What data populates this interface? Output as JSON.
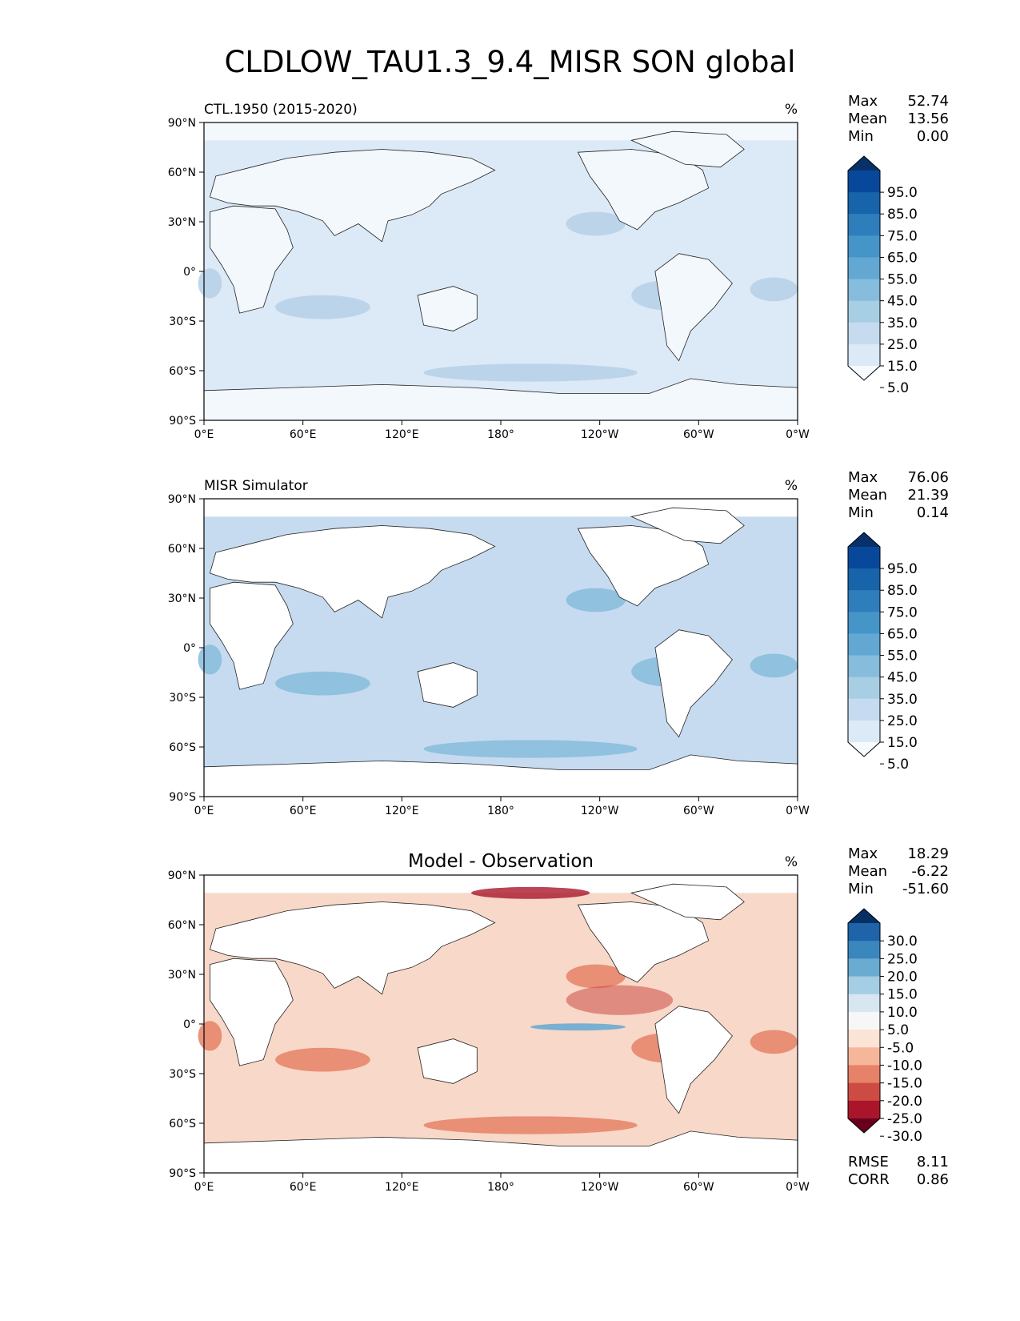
{
  "title": "CLDLOW_TAU1.3_9.4_MISR SON global",
  "lon_ticks": [
    "0°E",
    "60°E",
    "120°E",
    "180°",
    "120°W",
    "60°W",
    "0°W"
  ],
  "lat_ticks": [
    "90°N",
    "60°N",
    "30°N",
    "0°",
    "30°S",
    "60°S",
    "90°S"
  ],
  "panels": [
    {
      "name": "test",
      "left_label": "CTL.1950 (2015-2020)",
      "center_label": "",
      "units": "%",
      "stats": [
        {
          "label": "Max",
          "value": "52.74"
        },
        {
          "label": "Mean",
          "value": "13.56"
        },
        {
          "label": "Min",
          "value": "0.00"
        }
      ],
      "colorbar_ticks": [
        "95.0",
        "85.0",
        "75.0",
        "65.0",
        "55.0",
        "45.0",
        "35.0",
        "25.0",
        "15.0",
        "5.0"
      ],
      "colorbar_colors": [
        "#08306b",
        "#08489a",
        "#1764ab",
        "#2e7ebc",
        "#4695c8",
        "#63a8d3",
        "#86bcdc",
        "#a8cee4",
        "#c6dbef",
        "#dce9f6",
        "#f7fbff"
      ],
      "ocean_color": "#dce9f6",
      "land_color": "#f3f8fd",
      "accent_color": "#b5d0e8",
      "show_band": false
    },
    {
      "name": "reference",
      "left_label": "MISR Simulator",
      "center_label": "",
      "units": "%",
      "stats": [
        {
          "label": "Max",
          "value": "76.06"
        },
        {
          "label": "Mean",
          "value": "21.39"
        },
        {
          "label": "Min",
          "value": "0.14"
        }
      ],
      "colorbar_ticks": [
        "95.0",
        "85.0",
        "75.0",
        "65.0",
        "55.0",
        "45.0",
        "35.0",
        "25.0",
        "15.0",
        "5.0"
      ],
      "colorbar_colors": [
        "#08306b",
        "#08489a",
        "#1764ab",
        "#2e7ebc",
        "#4695c8",
        "#63a8d3",
        "#86bcdc",
        "#a8cee4",
        "#c6dbef",
        "#dce9f6",
        "#f7fbff"
      ],
      "ocean_color": "#c6dbef",
      "land_color": "#ffffff",
      "accent_color": "#86bcdc",
      "show_band": false
    },
    {
      "name": "difference",
      "left_label": "",
      "center_label": "Model - Observation",
      "units": "%",
      "stats": [
        {
          "label": "Max",
          "value": "18.29"
        },
        {
          "label": "Mean",
          "value": "-6.22"
        },
        {
          "label": "Min",
          "value": "-51.60"
        }
      ],
      "colorbar_ticks": [
        "30.0",
        "25.0",
        "20.0",
        "15.0",
        "10.0",
        "5.0",
        "-5.0",
        "-10.0",
        "-15.0",
        "-20.0",
        "-25.0",
        "-30.0"
      ],
      "colorbar_colors": [
        "#053061",
        "#1f63a8",
        "#3a87bd",
        "#6aabd1",
        "#a5cde3",
        "#d6e7f1",
        "#f7f7f7",
        "#fbe3d6",
        "#f6b69a",
        "#e58267",
        "#cc4c43",
        "#a9162b",
        "#67001f"
      ],
      "ocean_color": "#f8d8c8",
      "land_color": "#ffffff",
      "accent_color": "#e58267",
      "show_band": true,
      "metrics": [
        {
          "label": "RMSE",
          "value": "8.11"
        },
        {
          "label": "CORR",
          "value": "0.86"
        }
      ]
    }
  ]
}
